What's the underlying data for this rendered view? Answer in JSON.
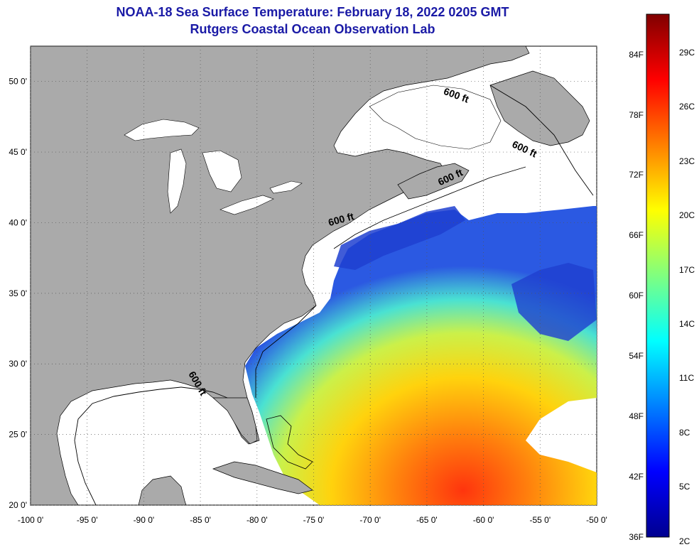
{
  "title": {
    "line1": "NOAA-18 Sea Surface Temperature:  February 18, 2022 0205 GMT",
    "line2": "Rutgers Coastal Ocean Observation Lab"
  },
  "map": {
    "lon_range": [
      -100,
      -50
    ],
    "lat_range": [
      20,
      52.5
    ],
    "lon_ticks": [
      {
        "value": -100,
        "label": "-100 0'"
      },
      {
        "value": -95,
        "label": "-95 0'"
      },
      {
        "value": -90,
        "label": "-90 0'"
      },
      {
        "value": -85,
        "label": "-85 0'"
      },
      {
        "value": -80,
        "label": "-80 0'"
      },
      {
        "value": -75,
        "label": "-75 0'"
      },
      {
        "value": -70,
        "label": "-70 0'"
      },
      {
        "value": -65,
        "label": "-65 0'"
      },
      {
        "value": -60,
        "label": "-60 0'"
      },
      {
        "value": -55,
        "label": "-55 0'"
      },
      {
        "value": -50,
        "label": "-50 0'"
      }
    ],
    "lat_ticks": [
      {
        "value": 50,
        "label": "50 0'"
      },
      {
        "value": 45,
        "label": "45 0'"
      },
      {
        "value": 40,
        "label": "40 0'"
      },
      {
        "value": 35,
        "label": "35 0'"
      },
      {
        "value": 30,
        "label": "30 0'"
      },
      {
        "value": 25,
        "label": "25 0'"
      },
      {
        "value": 20,
        "label": "20 0'"
      }
    ],
    "contour_labels": [
      {
        "text": "600 ft",
        "lon": -62.5,
        "lat": 48.8,
        "rotate": 20
      },
      {
        "text": "600 ft",
        "lon": -56.5,
        "lat": 45.0,
        "rotate": 25
      },
      {
        "text": "600 ft",
        "lon": -62.8,
        "lat": 43.0,
        "rotate": -25
      },
      {
        "text": "600 ft",
        "lon": -72.5,
        "lat": 40.0,
        "rotate": -15
      },
      {
        "text": "600 ft",
        "lon": -85.5,
        "lat": 28.5,
        "rotate": 60
      }
    ],
    "land_color": "#aaaaaa",
    "ocean_color": "#ffffff",
    "grid": true
  },
  "colorbar": {
    "min_f": 36,
    "max_f": 88,
    "fahrenheit_labels": [
      "84F",
      "78F",
      "72F",
      "66F",
      "60F",
      "54F",
      "48F",
      "42F",
      "36F"
    ],
    "celsius_labels": [
      "29C",
      "26C",
      "23C",
      "20C",
      "17C",
      "14C",
      "11C",
      "8C",
      "5C",
      "2C"
    ],
    "colormap": "jet"
  }
}
